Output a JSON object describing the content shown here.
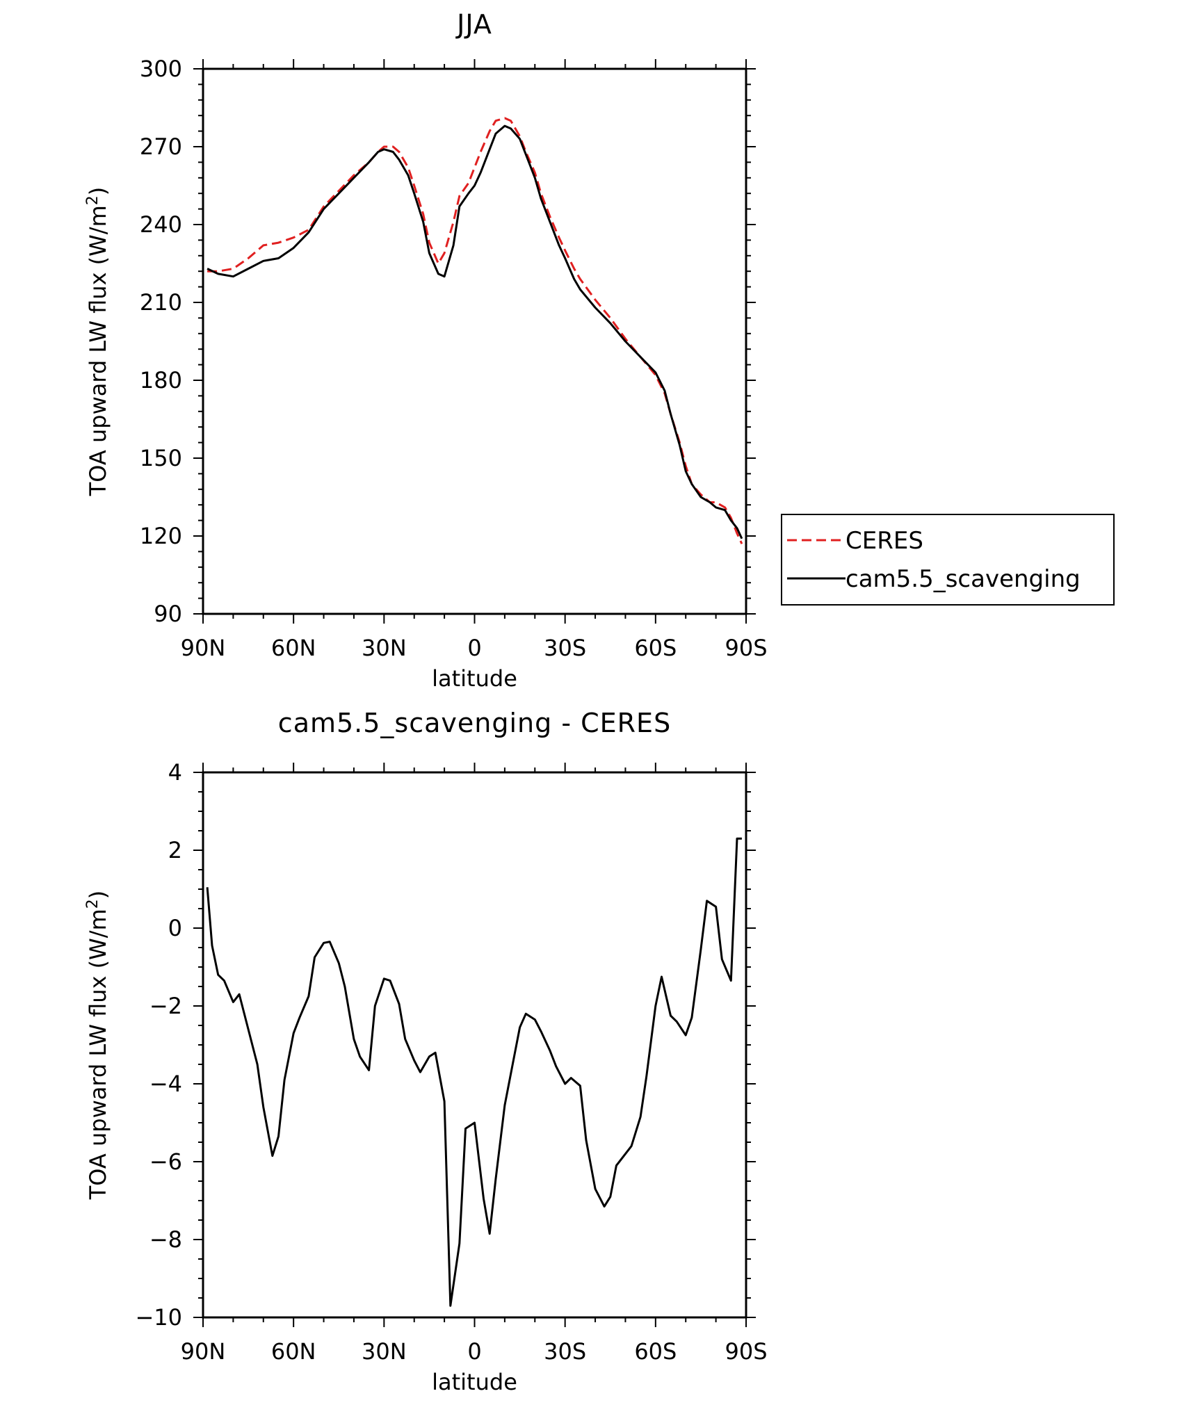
{
  "chart_data": [
    {
      "type": "line",
      "title": "JJA",
      "xlabel": "latitude",
      "ylabel": "TOA upward LW flux (W/m",
      "ylabel_sup": "2",
      "ylabel_close": ")",
      "xlim": [
        90,
        -90
      ],
      "ylim": [
        90,
        300
      ],
      "xticks": [
        90,
        60,
        30,
        0,
        -30,
        -60,
        -90
      ],
      "xtick_labels": [
        "90N",
        "60N",
        "30N",
        "0",
        "30S",
        "60S",
        "90S"
      ],
      "yticks": [
        90,
        120,
        150,
        180,
        210,
        240,
        270,
        300
      ],
      "ytick_labels": [
        "90",
        "120",
        "150",
        "180",
        "210",
        "240",
        "270",
        "300"
      ],
      "legend": {
        "placement": "right",
        "entries": [
          "CERES",
          "cam5.5_scavenging"
        ]
      },
      "series": [
        {
          "name": "CERES",
          "color": "#e02020",
          "dash": "dashed",
          "x": [
            88.6,
            85,
            80,
            75,
            70,
            65,
            60,
            55,
            50,
            45,
            40,
            35,
            32,
            30,
            27,
            25,
            22,
            20,
            17,
            15,
            12,
            10,
            7,
            5,
            2,
            0,
            -2,
            -5,
            -7,
            -10,
            -12,
            -15,
            -17,
            -20,
            -22,
            -25,
            -28,
            -30,
            -33,
            -35,
            -40,
            -45,
            -50,
            -55,
            -60,
            -63,
            -65,
            -68,
            -70,
            -72,
            -75,
            -78,
            -80,
            -83,
            -85,
            -87,
            -88.6
          ],
          "y": [
            222,
            222,
            223,
            227,
            232,
            233,
            235,
            238,
            247,
            253,
            259,
            264,
            268,
            270,
            270,
            268,
            262,
            255,
            244,
            233,
            225,
            229,
            241,
            251,
            256,
            262,
            268,
            276,
            280,
            281,
            280,
            274,
            268,
            260,
            252,
            243,
            235,
            230,
            223,
            219,
            211,
            204,
            196,
            189,
            182,
            175,
            167,
            156,
            147,
            140,
            136,
            133,
            133,
            131,
            127,
            121,
            117
          ]
        },
        {
          "name": "cam5.5_scavenging",
          "color": "#000000",
          "dash": "solid",
          "x": [
            88.6,
            85,
            80,
            75,
            70,
            65,
            60,
            55,
            50,
            45,
            40,
            35,
            32,
            30,
            27,
            25,
            22,
            20,
            17,
            15,
            12,
            10,
            7,
            5,
            2,
            0,
            -2,
            -5,
            -7,
            -10,
            -12,
            -15,
            -17,
            -20,
            -22,
            -25,
            -28,
            -30,
            -33,
            -35,
            -40,
            -45,
            -50,
            -55,
            -60,
            -63,
            -65,
            -68,
            -70,
            -72,
            -75,
            -78,
            -80,
            -83,
            -85,
            -87,
            -88.6
          ],
          "y": [
            223,
            221,
            220,
            223,
            226,
            227,
            231,
            237,
            246,
            252,
            258,
            264,
            268,
            269,
            268,
            265,
            259,
            252,
            241,
            229,
            221,
            220,
            232,
            247,
            252,
            255,
            260,
            269,
            275,
            278,
            277,
            273,
            267,
            258,
            250,
            241,
            232,
            227,
            219,
            215,
            208,
            202,
            195,
            189,
            183,
            176,
            167,
            155,
            145,
            140,
            135,
            133,
            131,
            130,
            126,
            123,
            119
          ]
        }
      ]
    },
    {
      "type": "line",
      "title": "cam5.5_scavenging - CERES",
      "xlabel": "latitude",
      "ylabel": "TOA upward LW flux (W/m",
      "ylabel_sup": "2",
      "ylabel_close": ")",
      "xlim": [
        90,
        -90
      ],
      "ylim": [
        -10,
        4
      ],
      "xticks": [
        90,
        60,
        30,
        0,
        -30,
        -60,
        -90
      ],
      "xtick_labels": [
        "90N",
        "60N",
        "30N",
        "0",
        "30S",
        "60S",
        "90S"
      ],
      "yticks": [
        4,
        2,
        0,
        -2,
        -4,
        -6,
        -8,
        -10
      ],
      "ytick_labels": [
        "4",
        "2",
        "0",
        "−2",
        "−4",
        "−6",
        "−8",
        "−10"
      ],
      "series": [
        {
          "color": "#000000",
          "dash": "solid",
          "x": [
            88.6,
            87,
            85,
            83,
            80,
            78,
            75,
            72,
            70,
            67,
            65,
            63,
            60,
            58,
            55,
            53,
            50,
            48,
            45,
            43,
            40,
            38,
            35,
            33,
            30,
            28,
            25,
            23,
            20,
            18,
            15,
            13,
            10,
            8,
            5,
            3,
            0,
            -3,
            -5,
            -7,
            -10,
            -13,
            -15,
            -17,
            -20,
            -22,
            -25,
            -27,
            -30,
            -32,
            -35,
            -37,
            -40,
            -43,
            -45,
            -47,
            -50,
            -52,
            -55,
            -57,
            -60,
            -62,
            -65,
            -67,
            -70,
            -72,
            -75,
            -77,
            -80,
            -82,
            -85,
            -87,
            -88.6
          ],
          "y": [
            1.05,
            -0.45,
            -1.2,
            -1.35,
            -1.9,
            -1.7,
            -2.6,
            -3.5,
            -4.6,
            -5.85,
            -5.35,
            -3.9,
            -2.7,
            -2.3,
            -1.75,
            -0.75,
            -0.38,
            -0.35,
            -0.9,
            -1.5,
            -2.85,
            -3.3,
            -3.65,
            -2.0,
            -1.3,
            -1.35,
            -1.95,
            -2.85,
            -3.4,
            -3.7,
            -3.3,
            -3.2,
            -4.45,
            -9.7,
            -8.1,
            -5.15,
            -5.0,
            -6.95,
            -7.85,
            -6.45,
            -4.55,
            -3.35,
            -2.55,
            -2.2,
            -2.35,
            -2.65,
            -3.15,
            -3.55,
            -4.0,
            -3.85,
            -4.05,
            -5.45,
            -6.7,
            -7.15,
            -6.9,
            -6.1,
            -5.8,
            -5.6,
            -4.85,
            -3.8,
            -2.0,
            -1.25,
            -2.25,
            -2.4,
            -2.75,
            -2.3,
            -0.55,
            0.7,
            0.55,
            -0.8,
            -1.35,
            2.3,
            2.3
          ]
        }
      ]
    }
  ]
}
